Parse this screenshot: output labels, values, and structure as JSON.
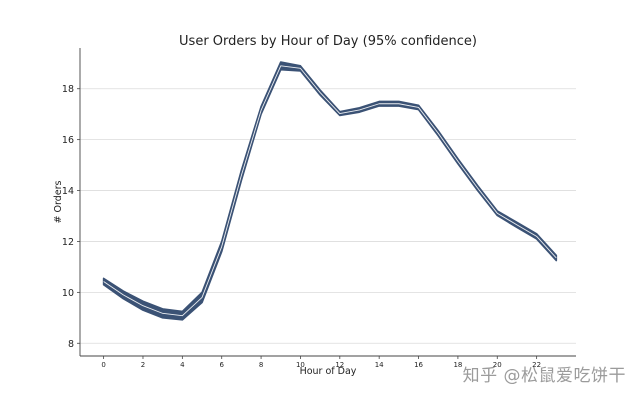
{
  "watermark": "知乎 @松鼠爱吃饼干",
  "chart_data": {
    "type": "line",
    "title": "User Orders by Hour of Day (95% confidence)",
    "xlabel": "Hour of Day",
    "ylabel": "# Orders",
    "xlim": [
      -1.2,
      24
    ],
    "ylim": [
      7.5,
      19.6
    ],
    "xticks": [
      0,
      2,
      4,
      6,
      8,
      10,
      12,
      14,
      16,
      18,
      20,
      22
    ],
    "yticks": [
      8,
      10,
      12,
      14,
      16,
      18
    ],
    "grid": "horizontal",
    "colors": {
      "band": "#3b5275",
      "center": "#ffffff",
      "grid": "#dcdcdc",
      "axis": "#444444"
    },
    "x": [
      0,
      1,
      2,
      3,
      4,
      5,
      6,
      7,
      8,
      9,
      10,
      11,
      12,
      13,
      14,
      15,
      16,
      17,
      18,
      19,
      20,
      21,
      22,
      23
    ],
    "upper": [
      10.55,
      10.05,
      9.65,
      9.35,
      9.25,
      10.0,
      12.0,
      14.8,
      17.3,
      19.05,
      18.9,
      17.95,
      17.1,
      17.25,
      17.5,
      17.5,
      17.35,
      16.35,
      15.25,
      14.2,
      13.2,
      12.75,
      12.3,
      11.45
    ],
    "lower": [
      10.3,
      9.75,
      9.3,
      9.0,
      8.92,
      9.6,
      11.6,
      14.4,
      17.0,
      18.75,
      18.7,
      17.75,
      16.95,
      17.08,
      17.32,
      17.32,
      17.18,
      16.15,
      15.05,
      14.0,
      13.02,
      12.55,
      12.1,
      11.25
    ]
  }
}
